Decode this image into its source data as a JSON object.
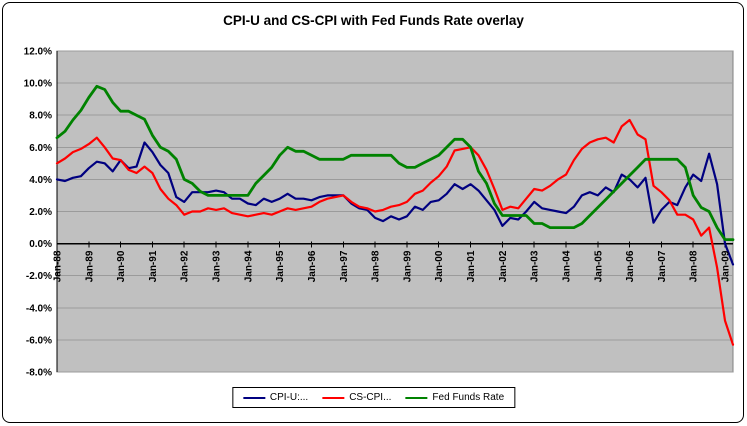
{
  "chart_data": {
    "type": "line",
    "title": "CPI-U and CS-CPI with Fed Funds Rate overlay",
    "xlabel": "",
    "ylabel": "",
    "ylim": [
      -8,
      12
    ],
    "y_tick_step": 2,
    "y_tick_suffix": "%",
    "x_tick_every": 4,
    "grid": true,
    "legend_position": "bottom",
    "plot_bg": "#c0c0c0",
    "grid_color": "#9b9b9b",
    "axis_color": "#000000",
    "y_tick_labels": [
      "12.0%",
      "10.0%",
      "8.0%",
      "6.0%",
      "4.0%",
      "2.0%",
      "0.0%",
      "-2.0%",
      "-4.0%",
      "-6.0%",
      "-8.0%"
    ],
    "x_tick_labels": [
      "Jan-88",
      "Jan-89",
      "Jan-90",
      "Jan-91",
      "Jan-92",
      "Jan-93",
      "Jan-94",
      "Jan-95",
      "Jan-96",
      "Jan-97",
      "Jan-98",
      "Jan-99",
      "Jan-00",
      "Jan-01",
      "Jan-02",
      "Jan-03",
      "Jan-04",
      "Jan-05",
      "Jan-06",
      "Jan-07",
      "Jan-08",
      "Jan-09"
    ],
    "x": [
      "Jan-88",
      "Apr-88",
      "Jul-88",
      "Oct-88",
      "Jan-89",
      "Apr-89",
      "Jul-89",
      "Oct-89",
      "Jan-90",
      "Apr-90",
      "Jul-90",
      "Oct-90",
      "Jan-91",
      "Apr-91",
      "Jul-91",
      "Oct-91",
      "Jan-92",
      "Apr-92",
      "Jul-92",
      "Oct-92",
      "Jan-93",
      "Apr-93",
      "Jul-93",
      "Oct-93",
      "Jan-94",
      "Apr-94",
      "Jul-94",
      "Oct-94",
      "Jan-95",
      "Apr-95",
      "Jul-95",
      "Oct-95",
      "Jan-96",
      "Apr-96",
      "Jul-96",
      "Oct-96",
      "Jan-97",
      "Apr-97",
      "Jul-97",
      "Oct-97",
      "Jan-98",
      "Apr-98",
      "Jul-98",
      "Oct-98",
      "Jan-99",
      "Apr-99",
      "Jul-99",
      "Oct-99",
      "Jan-00",
      "Apr-00",
      "Jul-00",
      "Oct-00",
      "Jan-01",
      "Apr-01",
      "Jul-01",
      "Oct-01",
      "Jan-02",
      "Apr-02",
      "Jul-02",
      "Oct-02",
      "Jan-03",
      "Apr-03",
      "Jul-03",
      "Oct-03",
      "Jan-04",
      "Apr-04",
      "Jul-04",
      "Oct-04",
      "Jan-05",
      "Apr-05",
      "Jul-05",
      "Oct-05",
      "Jan-06",
      "Apr-06",
      "Jul-06",
      "Oct-06",
      "Jan-07",
      "Apr-07",
      "Jul-07",
      "Oct-07",
      "Jan-08",
      "Apr-08",
      "Jul-08",
      "Oct-08",
      "Jan-09",
      "Apr-09"
    ],
    "series": [
      {
        "name": "CPI-U:...",
        "color": "#000080",
        "values": [
          4.0,
          3.9,
          4.1,
          4.2,
          4.7,
          5.1,
          5.0,
          4.5,
          5.2,
          4.7,
          4.8,
          6.3,
          5.7,
          4.9,
          4.4,
          2.9,
          2.6,
          3.2,
          3.2,
          3.2,
          3.3,
          3.2,
          2.8,
          2.8,
          2.5,
          2.4,
          2.8,
          2.6,
          2.8,
          3.1,
          2.8,
          2.8,
          2.7,
          2.9,
          3.0,
          3.0,
          3.0,
          2.5,
          2.2,
          2.1,
          1.6,
          1.4,
          1.7,
          1.5,
          1.7,
          2.3,
          2.1,
          2.6,
          2.7,
          3.1,
          3.7,
          3.4,
          3.7,
          3.3,
          2.7,
          2.1,
          1.1,
          1.6,
          1.5,
          2.0,
          2.6,
          2.2,
          2.1,
          2.0,
          1.9,
          2.3,
          3.0,
          3.2,
          3.0,
          3.5,
          3.2,
          4.3,
          4.0,
          3.5,
          4.1,
          1.3,
          2.1,
          2.6,
          2.4,
          3.5,
          4.3,
          3.9,
          5.6,
          3.7,
          0.0,
          -1.3
        ]
      },
      {
        "name": "CS-CPI...",
        "color": "#ff0000",
        "values": [
          5.0,
          5.3,
          5.7,
          5.9,
          6.2,
          6.6,
          6.0,
          5.3,
          5.2,
          4.6,
          4.4,
          4.8,
          4.4,
          3.4,
          2.8,
          2.4,
          1.8,
          2.0,
          2.0,
          2.2,
          2.1,
          2.2,
          1.9,
          1.8,
          1.7,
          1.8,
          1.9,
          1.8,
          2.0,
          2.2,
          2.1,
          2.2,
          2.3,
          2.6,
          2.8,
          2.9,
          3.0,
          2.6,
          2.3,
          2.2,
          2.0,
          2.1,
          2.3,
          2.4,
          2.6,
          3.1,
          3.3,
          3.8,
          4.2,
          4.8,
          5.8,
          5.9,
          6.0,
          5.5,
          4.6,
          3.4,
          2.1,
          2.3,
          2.2,
          2.8,
          3.4,
          3.3,
          3.6,
          4.0,
          4.3,
          5.2,
          5.9,
          6.3,
          6.5,
          6.6,
          6.3,
          7.3,
          7.7,
          6.8,
          6.5,
          3.6,
          3.2,
          2.7,
          1.8,
          1.8,
          1.5,
          0.5,
          1.0,
          -1.5,
          -4.8,
          -6.3
        ]
      },
      {
        "name": "Fed Funds Rate",
        "color": "#008200",
        "values": [
          6.6,
          7.0,
          7.7,
          8.3,
          9.1,
          9.8,
          9.6,
          8.8,
          8.25,
          8.25,
          8.0,
          7.75,
          6.75,
          6.0,
          5.75,
          5.25,
          4.0,
          3.75,
          3.25,
          3.0,
          3.0,
          3.0,
          3.0,
          3.0,
          3.0,
          3.75,
          4.25,
          4.75,
          5.5,
          6.0,
          5.75,
          5.75,
          5.5,
          5.25,
          5.25,
          5.25,
          5.25,
          5.5,
          5.5,
          5.5,
          5.5,
          5.5,
          5.5,
          5.0,
          4.75,
          4.75,
          5.0,
          5.25,
          5.5,
          6.0,
          6.5,
          6.5,
          6.0,
          4.5,
          3.75,
          2.5,
          1.75,
          1.75,
          1.75,
          1.75,
          1.25,
          1.25,
          1.0,
          1.0,
          1.0,
          1.0,
          1.25,
          1.75,
          2.25,
          2.75,
          3.25,
          3.75,
          4.25,
          4.75,
          5.25,
          5.25,
          5.25,
          5.25,
          5.25,
          4.75,
          3.0,
          2.25,
          2.0,
          1.0,
          0.25,
          0.25
        ]
      }
    ]
  }
}
